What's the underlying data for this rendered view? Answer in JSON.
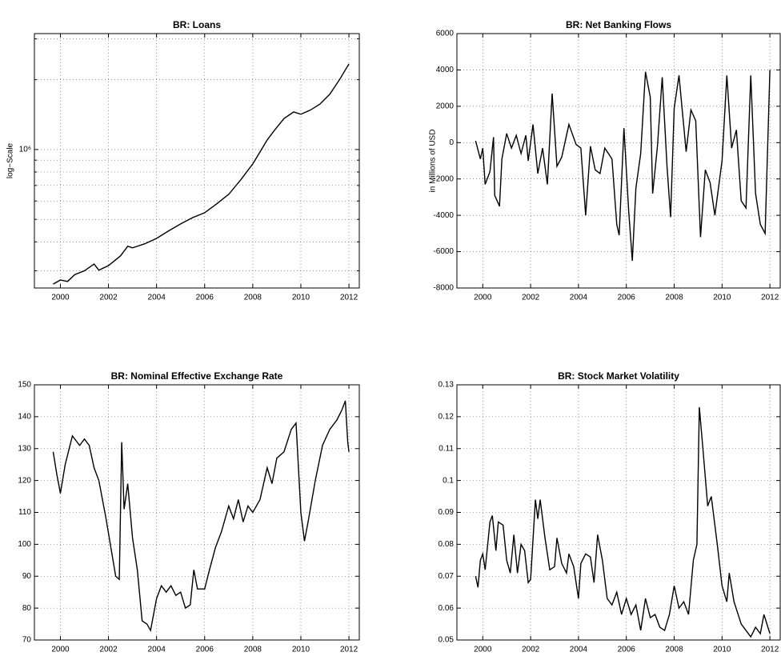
{
  "chart_data": [
    {
      "type": "line",
      "title": "BR: Loans",
      "ylabel": "log−Scale",
      "log_scale": true,
      "grid": true,
      "color": "#000000",
      "xlim": [
        1998.92,
        2012.43
      ],
      "xticks": [
        2000,
        2002,
        2004,
        2006,
        2008,
        2010,
        2012
      ],
      "ylim": [
        253000,
        3160000
      ],
      "yticks": [
        {
          "value": 1000000,
          "label": "10⁶"
        }
      ],
      "yminor": [
        300000,
        400000,
        500000,
        600000,
        700000,
        800000,
        900000,
        2000000,
        3000000
      ],
      "x": [
        1999.7,
        2000.0,
        2000.3,
        2000.6,
        2001.0,
        2001.4,
        2001.6,
        2002.0,
        2002.5,
        2002.8,
        2003.0,
        2003.5,
        2004.0,
        2004.5,
        2005.0,
        2005.5,
        2006.0,
        2006.5,
        2007.0,
        2007.5,
        2008.0,
        2008.3,
        2008.6,
        2008.9,
        2009.3,
        2009.7,
        2010.0,
        2010.4,
        2010.8,
        2011.2,
        2011.6,
        2012.0
      ],
      "values": [
        263000,
        274000,
        270000,
        289000,
        300000,
        321000,
        302000,
        316000,
        348000,
        383000,
        377000,
        392000,
        414000,
        446000,
        478000,
        509000,
        534000,
        583000,
        641000,
        740000,
        867000,
        976000,
        1100000,
        1210000,
        1360000,
        1452000,
        1420000,
        1480000,
        1572000,
        1730000,
        1995000,
        2339000
      ]
    },
    {
      "type": "line",
      "title": "BR: Net Banking Flows",
      "ylabel": "in Millions of USD",
      "log_scale": false,
      "grid": true,
      "color": "#000000",
      "xlim": [
        1998.92,
        2012.43
      ],
      "xticks": [
        2000,
        2002,
        2004,
        2006,
        2008,
        2010,
        2012
      ],
      "ylim": [
        -8000,
        6000
      ],
      "yticks": [
        -8000,
        -6000,
        -4000,
        -2000,
        0,
        2000,
        4000,
        6000
      ],
      "x": [
        1999.7,
        1999.9,
        2000.0,
        2000.1,
        2000.3,
        2000.45,
        2000.5,
        2000.7,
        2000.8,
        2001.0,
        2001.2,
        2001.4,
        2001.6,
        2001.8,
        2001.9,
        2002.1,
        2002.3,
        2002.5,
        2002.7,
        2002.9,
        2003.1,
        2003.3,
        2003.6,
        2003.9,
        2004.1,
        2004.3,
        2004.5,
        2004.7,
        2004.9,
        2005.1,
        2005.4,
        2005.6,
        2005.7,
        2005.9,
        2006.1,
        2006.25,
        2006.4,
        2006.6,
        2006.8,
        2007.0,
        2007.1,
        2007.3,
        2007.5,
        2007.7,
        2007.85,
        2008.0,
        2008.2,
        2008.5,
        2008.7,
        2008.9,
        2009.1,
        2009.3,
        2009.5,
        2009.7,
        2010.0,
        2010.2,
        2010.4,
        2010.6,
        2010.8,
        2011.0,
        2011.2,
        2011.4,
        2011.6,
        2011.8,
        2012.0
      ],
      "values": [
        100,
        -900,
        -300,
        -2300,
        -1600,
        300,
        -2900,
        -3500,
        -900,
        500,
        -300,
        400,
        -600,
        400,
        -1000,
        1000,
        -1700,
        -300,
        -2300,
        2700,
        -1300,
        -800,
        1000,
        -100,
        -300,
        -4000,
        -200,
        -1500,
        -1700,
        -300,
        -900,
        -4500,
        -5100,
        800,
        -3800,
        -6500,
        -2500,
        -600,
        3900,
        2500,
        -2800,
        -200,
        3600,
        -1300,
        -4100,
        1900,
        3700,
        -500,
        1800,
        1200,
        -5200,
        -1500,
        -2200,
        -4000,
        -1000,
        3700,
        -300,
        700,
        -3200,
        -3600,
        3700,
        -2800,
        -4500,
        -5000,
        4000
      ]
    },
    {
      "type": "line",
      "title": "BR: Nominal Effective Exchange Rate",
      "log_scale": false,
      "grid": true,
      "color": "#000000",
      "xlim": [
        1998.92,
        2012.43
      ],
      "xticks": [
        2000,
        2002,
        2004,
        2006,
        2008,
        2010,
        2012
      ],
      "ylim": [
        70,
        150
      ],
      "yticks": [
        70,
        80,
        90,
        100,
        110,
        120,
        130,
        140,
        150
      ],
      "x": [
        1999.7,
        1999.85,
        2000.0,
        2000.2,
        2000.5,
        2000.8,
        2001.0,
        2001.2,
        2001.4,
        2001.6,
        2001.9,
        2002.1,
        2002.3,
        2002.45,
        2002.55,
        2002.65,
        2002.8,
        2003.0,
        2003.2,
        2003.4,
        2003.6,
        2003.75,
        2004.0,
        2004.2,
        2004.4,
        2004.6,
        2004.8,
        2005.0,
        2005.2,
        2005.4,
        2005.55,
        2005.7,
        2006.0,
        2006.2,
        2006.45,
        2006.7,
        2007.0,
        2007.2,
        2007.4,
        2007.6,
        2007.8,
        2008.0,
        2008.3,
        2008.6,
        2008.8,
        2009.0,
        2009.3,
        2009.6,
        2009.8,
        2010.0,
        2010.15,
        2010.3,
        2010.6,
        2010.9,
        2011.2,
        2011.5,
        2011.7,
        2011.85,
        2011.95,
        2012.0
      ],
      "values": [
        129,
        122,
        116,
        125,
        134,
        131,
        133,
        131,
        124,
        120,
        108,
        99,
        90,
        89,
        132,
        111,
        119,
        102,
        92,
        76,
        75,
        73,
        83,
        87,
        85,
        87,
        84,
        85,
        80,
        81,
        92,
        86,
        86,
        92,
        99,
        104,
        112,
        108,
        114,
        107,
        112,
        110,
        114,
        124,
        119,
        127,
        129,
        136,
        138,
        110,
        101,
        107,
        120,
        131,
        136,
        139,
        142,
        145,
        132,
        129
      ]
    },
    {
      "type": "line",
      "title": "BR: Stock Market Volatility",
      "log_scale": false,
      "grid": true,
      "color": "#000000",
      "xlim": [
        1998.92,
        2012.43
      ],
      "xticks": [
        2000,
        2002,
        2004,
        2006,
        2008,
        2010,
        2012
      ],
      "ylim": [
        0.05,
        0.13
      ],
      "yticks": [
        0.05,
        0.06,
        0.07,
        0.08,
        0.09,
        0.1,
        0.11,
        0.12,
        0.13
      ],
      "x": [
        1999.7,
        1999.8,
        1999.9,
        2000.0,
        2000.1,
        2000.3,
        2000.4,
        2000.55,
        2000.65,
        2000.85,
        2001.0,
        2001.15,
        2001.3,
        2001.45,
        2001.6,
        2001.75,
        2001.9,
        2002.0,
        2002.2,
        2002.3,
        2002.4,
        2002.6,
        2002.8,
        2003.0,
        2003.1,
        2003.3,
        2003.5,
        2003.6,
        2003.8,
        2004.0,
        2004.1,
        2004.3,
        2004.5,
        2004.65,
        2004.8,
        2005.0,
        2005.2,
        2005.4,
        2005.6,
        2005.8,
        2006.0,
        2006.2,
        2006.4,
        2006.6,
        2006.8,
        2007.0,
        2007.2,
        2007.4,
        2007.6,
        2007.8,
        2008.0,
        2008.2,
        2008.4,
        2008.6,
        2008.8,
        2008.95,
        2009.05,
        2009.2,
        2009.4,
        2009.55,
        2009.8,
        2010.0,
        2010.2,
        2010.3,
        2010.5,
        2010.8,
        2011.0,
        2011.2,
        2011.4,
        2011.6,
        2011.75,
        2012.0
      ],
      "values": [
        0.07,
        0.0665,
        0.075,
        0.077,
        0.072,
        0.087,
        0.089,
        0.078,
        0.087,
        0.086,
        0.075,
        0.071,
        0.083,
        0.071,
        0.08,
        0.078,
        0.068,
        0.069,
        0.094,
        0.088,
        0.094,
        0.082,
        0.072,
        0.073,
        0.082,
        0.074,
        0.071,
        0.077,
        0.073,
        0.063,
        0.074,
        0.077,
        0.076,
        0.068,
        0.083,
        0.075,
        0.063,
        0.061,
        0.065,
        0.058,
        0.063,
        0.058,
        0.061,
        0.053,
        0.063,
        0.057,
        0.058,
        0.054,
        0.053,
        0.058,
        0.067,
        0.06,
        0.062,
        0.058,
        0.075,
        0.08,
        0.123,
        0.11,
        0.092,
        0.095,
        0.08,
        0.067,
        0.062,
        0.071,
        0.062,
        0.055,
        0.053,
        0.051,
        0.054,
        0.052,
        0.058,
        0.052
      ]
    }
  ]
}
